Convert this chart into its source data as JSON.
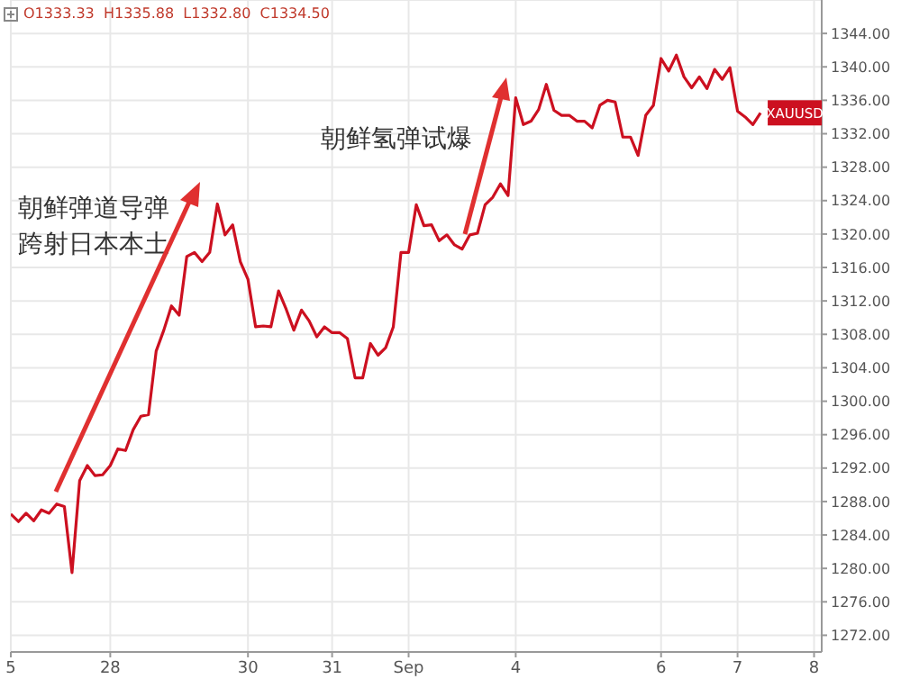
{
  "chart_data": {
    "type": "line",
    "categories": [
      "5",
      null,
      null,
      null,
      null,
      null,
      null,
      null,
      null,
      null,
      null,
      null,
      null,
      "28",
      null,
      null,
      null,
      null,
      null,
      null,
      null,
      null,
      null,
      null,
      null,
      null,
      null,
      null,
      null,
      null,
      null,
      "30",
      null,
      null,
      null,
      null,
      null,
      null,
      null,
      null,
      null,
      null,
      "31",
      null,
      null,
      null,
      null,
      null,
      null,
      null,
      null,
      null,
      "Sep",
      null,
      null,
      null,
      null,
      null,
      null,
      null,
      null,
      null,
      null,
      null,
      null,
      null,
      "4",
      null,
      null,
      null,
      null,
      null,
      null,
      null,
      null,
      null,
      null,
      null,
      null,
      null,
      null,
      null,
      null,
      null,
      null,
      "6",
      null,
      null,
      null,
      null,
      null,
      null,
      null,
      null,
      null,
      "7",
      null,
      null,
      null,
      null,
      null,
      null,
      null,
      null,
      null,
      "8",
      null
    ],
    "series": [
      {
        "name": "XAUUSD",
        "color": "#cc1020",
        "values": [
          1286.5,
          1285.6,
          1286.6,
          1285.7,
          1287.0,
          1286.6,
          1287.7,
          1287.4,
          1279.5,
          1290.5,
          1292.3,
          1291.1,
          1291.2,
          1292.3,
          1294.3,
          1294.1,
          1296.6,
          1298.2,
          1298.4,
          1306.0,
          1308.5,
          1311.4,
          1310.3,
          1317.3,
          1317.8,
          1316.7,
          1317.8,
          1323.6,
          1319.9,
          1321.1,
          1316.7,
          1314.6,
          1308.9,
          1309.0,
          1308.9,
          1313.2,
          1311.0,
          1308.5,
          1310.9,
          1309.6,
          1307.7,
          1308.9,
          1308.2,
          1308.2,
          1307.5,
          1302.8,
          1302.8,
          1306.9,
          1305.5,
          1306.4,
          1308.9,
          1317.8,
          1317.8,
          1323.5,
          1321.0,
          1321.1,
          1319.2,
          1319.9,
          1318.7,
          1318.2,
          1319.9,
          1320.1,
          1323.5,
          1324.4,
          1326.0,
          1324.6,
          1336.3,
          1333.1,
          1333.5,
          1334.9,
          1337.9,
          1334.8,
          1334.2,
          1334.2,
          1333.5,
          1333.5,
          1332.7,
          1335.4,
          1336.0,
          1335.8,
          1331.6,
          1331.6,
          1329.4,
          1334.2,
          1335.4,
          1341.0,
          1339.5,
          1341.4,
          1338.8,
          1337.5,
          1338.8,
          1337.4,
          1339.7,
          1338.5,
          1339.9,
          1334.7,
          1334.0,
          1333.1,
          1334.5,
          null,
          null,
          null,
          null,
          null,
          null,
          null,
          null
        ]
      }
    ],
    "ylim": [
      1270,
      1348
    ],
    "yticks": [
      {
        "value": 1272,
        "label": "1272.00"
      },
      {
        "value": 1276,
        "label": "1276.00"
      },
      {
        "value": 1280,
        "label": "1280.00"
      },
      {
        "value": 1284,
        "label": "1284.00"
      },
      {
        "value": 1288,
        "label": "1288.00"
      },
      {
        "value": 1292,
        "label": "1292.00"
      },
      {
        "value": 1296,
        "label": "1296.00"
      },
      {
        "value": 1300,
        "label": "1300.00"
      },
      {
        "value": 1304,
        "label": "1304.00"
      },
      {
        "value": 1308,
        "label": "1308.00"
      },
      {
        "value": 1312,
        "label": "1312.00"
      },
      {
        "value": 1316,
        "label": "1316.00"
      },
      {
        "value": 1320,
        "label": "1320.00"
      },
      {
        "value": 1324,
        "label": "1324.00"
      },
      {
        "value": 1328,
        "label": "1328.00"
      },
      {
        "value": 1332,
        "label": "1332.00"
      },
      {
        "value": 1336,
        "label": "1336.00"
      },
      {
        "value": 1340,
        "label": "1340.00"
      },
      {
        "value": 1344,
        "label": "1344.00"
      }
    ],
    "grid": true,
    "marker": "none",
    "line_style": "solid",
    "annotations": [
      "O1333.33  H1335.88  L1332.80  C1334.50",
      "朝鲜弹道导弹跨射日本本土",
      {
        "text": "朝鲜氢弹试爆",
        "x": "4",
        "y": 1336
      }
    ]
  }
}
